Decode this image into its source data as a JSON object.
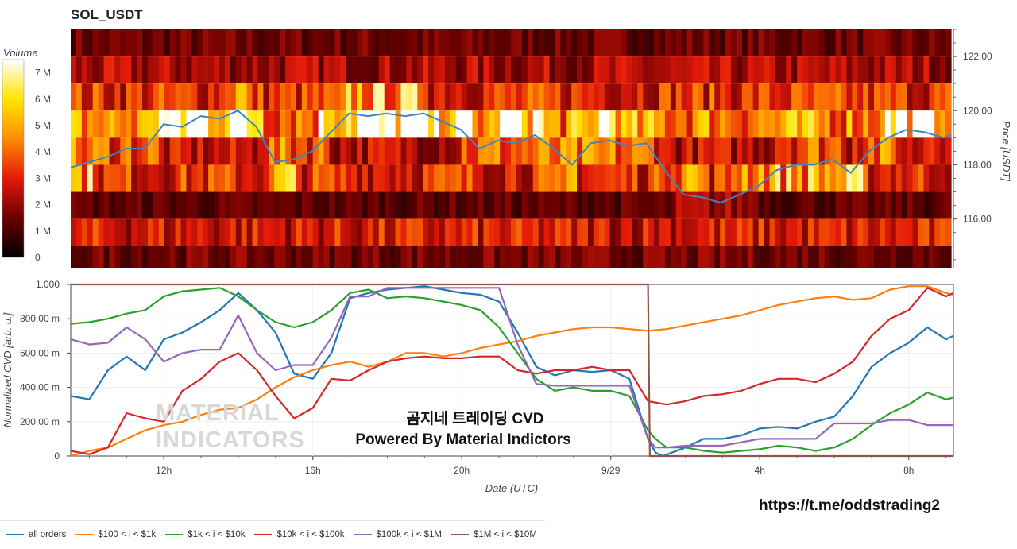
{
  "header": {
    "title": "SOL_USDT"
  },
  "colorbar": {
    "label": "Volume",
    "ticks": [
      "7 M",
      "6 M",
      "5 M",
      "4 M",
      "3 M",
      "2 M",
      "1 M",
      "0"
    ]
  },
  "watermark": {
    "line1": "MATERIAL",
    "line2": "INDICATORS"
  },
  "overlay": {
    "line1": "곰지네 트레이딩 CVD",
    "line2": "Powered By Material Indictors"
  },
  "footer": {
    "url": "https://t.me/oddstrading2"
  },
  "chart_data": [
    {
      "type": "heatmap",
      "title": "SOL_USDT",
      "ylabel": "Price [USDT]",
      "yticks": [
        "122.00",
        "120.00",
        "118.00",
        "116.00"
      ],
      "ylim": [
        114.2,
        123.0
      ],
      "colorbar_label": "Volume",
      "colorbar_range": [
        0,
        7.5
      ],
      "price_levels": [
        122.5,
        121.5,
        120.5,
        119.5,
        118.5,
        117.5,
        116.5,
        115.5,
        114.5
      ],
      "volume_profile_M": {
        "levels": [
          122.5,
          121.5,
          120.5,
          119.5,
          118.5,
          117.5,
          116.5,
          115.5,
          114.5
        ],
        "typical": [
          1.5,
          2.2,
          3.2,
          4.5,
          2.5,
          3.2,
          1.3,
          2.8,
          1.6
        ]
      },
      "price_line": {
        "name": "Price",
        "x_hours": [
          9.5,
          10,
          10.5,
          11,
          11.5,
          12,
          12.5,
          13,
          13.5,
          14,
          14.5,
          15,
          15.5,
          16,
          16.5,
          17,
          17.5,
          18,
          18.5,
          19,
          19.5,
          20,
          20.5,
          21,
          21.5,
          22,
          22.5,
          23,
          23.5,
          24,
          24.5,
          25,
          25.5,
          26,
          26.5,
          27,
          27.5,
          28,
          28.5,
          29,
          29.5,
          30,
          30.5,
          31,
          31.5,
          32,
          32.5,
          33,
          33.2
        ],
        "values": [
          117.9,
          118.1,
          118.3,
          118.6,
          118.6,
          119.5,
          119.4,
          119.8,
          119.7,
          120.0,
          119.4,
          118.1,
          118.2,
          118.5,
          119.2,
          119.9,
          119.8,
          119.9,
          119.8,
          119.9,
          119.6,
          119.3,
          118.6,
          118.9,
          118.8,
          119.1,
          118.6,
          118.0,
          118.8,
          118.9,
          118.7,
          118.8,
          117.8,
          116.9,
          116.8,
          116.6,
          116.9,
          117.2,
          117.8,
          118.0,
          118.0,
          118.2,
          117.7,
          118.5,
          119.0,
          119.3,
          119.2,
          119.0,
          119.1
        ]
      },
      "xlim_hours": [
        9.5,
        33.2
      ]
    },
    {
      "type": "line",
      "xlabel": "Date (UTC)",
      "ylabel": "Normalized CVD [arb. u.]",
      "xticks": [
        "12h",
        "16h",
        "20h",
        "9/29",
        "4h",
        "8h"
      ],
      "xtick_hours": [
        12,
        16,
        20,
        24,
        28,
        32
      ],
      "yticks": [
        "0",
        "200.00 m",
        "400.00 m",
        "600.00 m",
        "800.00 m",
        "1.000"
      ],
      "ylim": [
        0,
        1.0
      ],
      "xlim_hours": [
        9.5,
        33.2
      ],
      "series": [
        {
          "name": "all orders",
          "color": "#1f77b4",
          "x": [
            9.5,
            10,
            10.5,
            11,
            11.5,
            12,
            12.5,
            13,
            13.5,
            14,
            14.5,
            15,
            15.5,
            16,
            16.5,
            17,
            17.5,
            18,
            18.5,
            19,
            19.5,
            20,
            20.5,
            21,
            21.5,
            22,
            22.5,
            23,
            23.5,
            24,
            24.5,
            25,
            25.2,
            25.4,
            26,
            26.5,
            27,
            27.5,
            28,
            28.5,
            29,
            29.5,
            30,
            30.5,
            31,
            31.5,
            32,
            32.5,
            33,
            33.2
          ],
          "values": [
            0.35,
            0.33,
            0.5,
            0.58,
            0.5,
            0.68,
            0.72,
            0.78,
            0.85,
            0.95,
            0.85,
            0.72,
            0.48,
            0.45,
            0.6,
            0.92,
            0.95,
            0.97,
            0.98,
            0.99,
            0.97,
            0.95,
            0.94,
            0.9,
            0.72,
            0.52,
            0.47,
            0.5,
            0.49,
            0.5,
            0.45,
            0.1,
            0.02,
            0.0,
            0.05,
            0.1,
            0.1,
            0.12,
            0.16,
            0.17,
            0.16,
            0.2,
            0.23,
            0.35,
            0.52,
            0.6,
            0.66,
            0.75,
            0.68,
            0.7
          ]
        },
        {
          "name": "$100 < i < $1k",
          "color": "#ff7f0e",
          "x": [
            9.5,
            10,
            10.5,
            11,
            11.5,
            12,
            12.5,
            13,
            13.5,
            14,
            14.5,
            15,
            15.5,
            16,
            16.5,
            17,
            17.5,
            18,
            18.5,
            19,
            19.5,
            20,
            20.5,
            21,
            21.5,
            22,
            22.5,
            23,
            23.5,
            24,
            24.5,
            25,
            25.5,
            26,
            26.5,
            27,
            27.5,
            28,
            28.5,
            29,
            29.5,
            30,
            30.5,
            31,
            31.5,
            32,
            32.5,
            33,
            33.2
          ],
          "values": [
            0.0,
            0.03,
            0.05,
            0.1,
            0.15,
            0.18,
            0.2,
            0.24,
            0.27,
            0.28,
            0.33,
            0.4,
            0.46,
            0.5,
            0.53,
            0.55,
            0.52,
            0.55,
            0.6,
            0.6,
            0.58,
            0.6,
            0.63,
            0.65,
            0.67,
            0.7,
            0.72,
            0.74,
            0.75,
            0.75,
            0.74,
            0.73,
            0.74,
            0.76,
            0.78,
            0.8,
            0.82,
            0.85,
            0.88,
            0.9,
            0.92,
            0.93,
            0.91,
            0.92,
            0.97,
            0.99,
            0.99,
            0.95,
            0.94
          ]
        },
        {
          "name": "$1k < i < $10k",
          "color": "#2ca02c",
          "x": [
            9.5,
            10,
            10.5,
            11,
            11.5,
            12,
            12.5,
            13,
            13.5,
            14,
            14.5,
            15,
            15.5,
            16,
            16.5,
            17,
            17.5,
            18,
            18.5,
            19,
            19.5,
            20,
            20.5,
            21,
            21.5,
            22,
            22.5,
            23,
            23.5,
            24,
            24.5,
            25,
            25.2,
            25.5,
            26,
            26.5,
            27,
            27.5,
            28,
            28.5,
            29,
            29.5,
            30,
            30.5,
            31,
            31.5,
            32,
            32.5,
            33,
            33.2
          ],
          "values": [
            0.77,
            0.78,
            0.8,
            0.83,
            0.85,
            0.93,
            0.96,
            0.97,
            0.98,
            0.93,
            0.85,
            0.78,
            0.75,
            0.78,
            0.85,
            0.95,
            0.97,
            0.92,
            0.93,
            0.92,
            0.9,
            0.88,
            0.85,
            0.75,
            0.6,
            0.45,
            0.38,
            0.4,
            0.38,
            0.38,
            0.35,
            0.15,
            0.1,
            0.05,
            0.05,
            0.03,
            0.02,
            0.03,
            0.04,
            0.06,
            0.05,
            0.03,
            0.05,
            0.1,
            0.18,
            0.25,
            0.3,
            0.37,
            0.33,
            0.34
          ]
        },
        {
          "name": "$10k < i < $100k",
          "color": "#d62728",
          "x": [
            9.5,
            10,
            10.5,
            11,
            11.5,
            12,
            12.5,
            13,
            13.5,
            14,
            14.5,
            15,
            15.5,
            16,
            16.5,
            17,
            17.5,
            18,
            18.5,
            19,
            19.5,
            20,
            20.5,
            21,
            21.5,
            22,
            22.5,
            23,
            23.5,
            24,
            24.5,
            25,
            25.5,
            26,
            26.5,
            27,
            27.5,
            28,
            28.5,
            29,
            29.5,
            30,
            30.5,
            31,
            31.5,
            32,
            32.5,
            33,
            33.2
          ],
          "values": [
            0.03,
            0.01,
            0.05,
            0.25,
            0.22,
            0.2,
            0.38,
            0.45,
            0.55,
            0.6,
            0.5,
            0.35,
            0.22,
            0.28,
            0.45,
            0.44,
            0.5,
            0.55,
            0.57,
            0.58,
            0.57,
            0.57,
            0.58,
            0.58,
            0.5,
            0.48,
            0.5,
            0.5,
            0.52,
            0.5,
            0.5,
            0.32,
            0.3,
            0.32,
            0.35,
            0.36,
            0.38,
            0.42,
            0.45,
            0.45,
            0.43,
            0.48,
            0.55,
            0.7,
            0.8,
            0.85,
            0.98,
            0.93,
            0.95
          ]
        },
        {
          "name": "$100k < i < $1M",
          "color": "#9467bd",
          "x": [
            9.5,
            10,
            10.5,
            11,
            11.5,
            12,
            12.5,
            13,
            13.5,
            14,
            14.5,
            15,
            15.5,
            16,
            16.5,
            17,
            17.5,
            18,
            18.5,
            19,
            19.5,
            20,
            20.5,
            21,
            21.5,
            22,
            22.5,
            23,
            23.5,
            24,
            24.5,
            25,
            25.2,
            25.5,
            26,
            26.5,
            27,
            27.5,
            28,
            28.5,
            29,
            29.5,
            30,
            30.5,
            31,
            31.5,
            32,
            32.5,
            33,
            33.2
          ],
          "values": [
            0.68,
            0.65,
            0.66,
            0.75,
            0.68,
            0.55,
            0.6,
            0.62,
            0.62,
            0.82,
            0.6,
            0.5,
            0.53,
            0.53,
            0.69,
            0.93,
            0.93,
            0.98,
            0.98,
            0.98,
            0.98,
            0.98,
            0.98,
            0.98,
            0.65,
            0.42,
            0.41,
            0.41,
            0.41,
            0.41,
            0.41,
            0.1,
            0.05,
            0.05,
            0.06,
            0.06,
            0.06,
            0.08,
            0.1,
            0.1,
            0.1,
            0.1,
            0.19,
            0.19,
            0.19,
            0.21,
            0.21,
            0.18,
            0.18,
            0.18
          ]
        },
        {
          "name": "$1M < i < $10M",
          "color": "#8c564b",
          "x": [
            9.5,
            12,
            16,
            20,
            24,
            25.0,
            25.05,
            28,
            33.2
          ],
          "values": [
            1.0,
            1.0,
            1.0,
            1.0,
            1.0,
            1.0,
            0.0,
            0.0,
            0.0
          ]
        }
      ]
    }
  ]
}
